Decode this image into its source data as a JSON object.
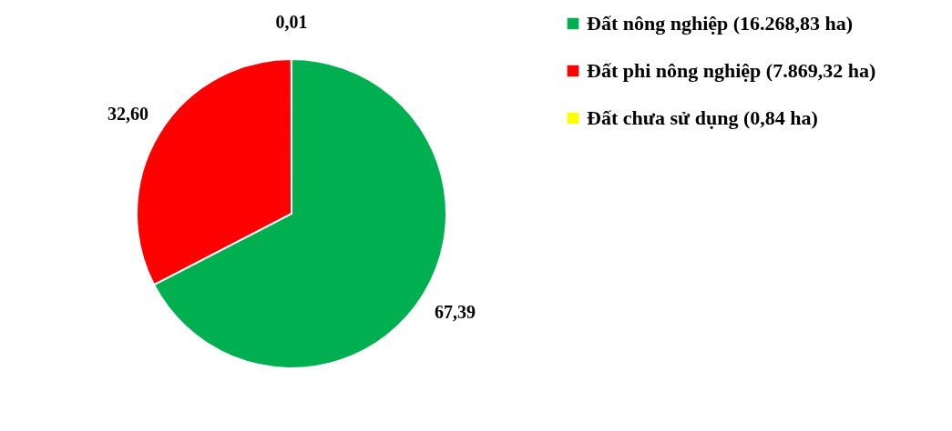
{
  "chart_data": {
    "type": "pie",
    "categories": [
      "Đất nông nghiệp (16.268,83 ha)",
      "Đất phi nông nghiệp (7.869,32 ha)",
      "Đất chưa sử dụng (0,84 ha)"
    ],
    "values": [
      67.39,
      32.6,
      0.01
    ],
    "colors": [
      "#00b050",
      "#ff0000",
      "#ffff00"
    ],
    "value_labels": [
      "67,39",
      "32,60",
      "0,01"
    ],
    "legend": "right"
  }
}
